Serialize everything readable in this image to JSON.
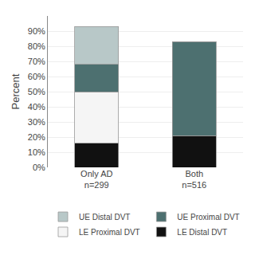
{
  "chart_data": {
    "type": "bar",
    "stacked": true,
    "categories": [
      "Only AD\nn=299",
      "Both\nn=516"
    ],
    "series": [
      {
        "name": "LE Distal DVT",
        "color": "#111111",
        "values": [
          16.0,
          21.0
        ]
      },
      {
        "name": "LE Proximal DVT",
        "color": "#f5f5f5",
        "values": [
          34.0,
          0.0
        ]
      },
      {
        "name": "UE Proximal DVT",
        "color": "#4d7070",
        "values": [
          18.0,
          62.0
        ]
      },
      {
        "name": "UE Distal DVT",
        "color": "#b8c8c8",
        "values": [
          25.0,
          0.0
        ]
      }
    ],
    "ylabel": "Percent",
    "ylim": [
      0,
      100
    ],
    "yticks": [
      {
        "value": 0,
        "label": "0%"
      },
      {
        "value": 10,
        "label": "10%"
      },
      {
        "value": 20,
        "label": "20%"
      },
      {
        "value": 30,
        "label": "30%"
      },
      {
        "value": 40,
        "label": "40%"
      },
      {
        "value": 50,
        "label": "50%"
      },
      {
        "value": 60,
        "label": "60%"
      },
      {
        "value": 70,
        "label": "70%"
      },
      {
        "value": 80,
        "label": "80%"
      },
      {
        "value": 90,
        "label": "90%"
      }
    ],
    "grid": true,
    "legend": "bottom"
  }
}
